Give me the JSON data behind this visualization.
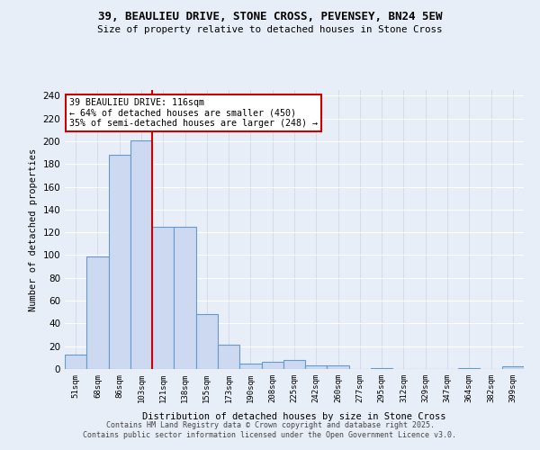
{
  "title_line1": "39, BEAULIEU DRIVE, STONE CROSS, PEVENSEY, BN24 5EW",
  "title_line2": "Size of property relative to detached houses in Stone Cross",
  "xlabel": "Distribution of detached houses by size in Stone Cross",
  "ylabel": "Number of detached properties",
  "bin_labels": [
    "51sqm",
    "68sqm",
    "86sqm",
    "103sqm",
    "121sqm",
    "138sqm",
    "155sqm",
    "173sqm",
    "190sqm",
    "208sqm",
    "225sqm",
    "242sqm",
    "260sqm",
    "277sqm",
    "295sqm",
    "312sqm",
    "329sqm",
    "347sqm",
    "364sqm",
    "382sqm",
    "399sqm"
  ],
  "bar_heights": [
    13,
    99,
    188,
    201,
    125,
    125,
    48,
    21,
    5,
    6,
    8,
    3,
    3,
    0,
    1,
    0,
    0,
    0,
    1,
    0,
    2
  ],
  "bar_color": "#ccd9f0",
  "bar_edgecolor": "#6699cc",
  "vline_color": "#cc0000",
  "vline_x": 3.5,
  "annotation_text": "39 BEAULIEU DRIVE: 116sqm\n← 64% of detached houses are smaller (450)\n35% of semi-detached houses are larger (248) →",
  "annotation_box_color": "#ffffff",
  "annotation_border_color": "#cc0000",
  "background_color": "#e8eef8",
  "grid_color": "#c8d4e8",
  "ylim": [
    0,
    245
  ],
  "yticks": [
    0,
    20,
    40,
    60,
    80,
    100,
    120,
    140,
    160,
    180,
    200,
    220,
    240
  ],
  "footer_line1": "Contains HM Land Registry data © Crown copyright and database right 2025.",
  "footer_line2": "Contains public sector information licensed under the Open Government Licence v3.0."
}
